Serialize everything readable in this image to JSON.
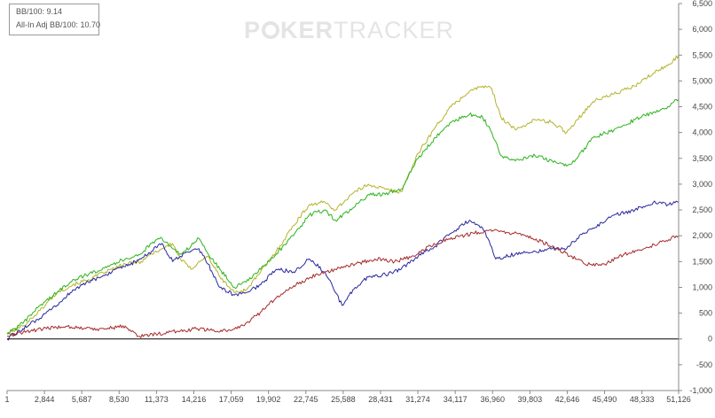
{
  "chart_data": {
    "type": "line",
    "title": "",
    "xlabel": "",
    "ylabel": "",
    "xlim": [
      1,
      51126
    ],
    "ylim": [
      -1000,
      6500
    ],
    "x_ticks": [
      1,
      2844,
      5687,
      8530,
      11373,
      14216,
      17059,
      19902,
      22745,
      25588,
      28431,
      31274,
      34117,
      36960,
      39803,
      42646,
      45490,
      48333,
      51126
    ],
    "y_ticks": [
      -1000,
      -500,
      0,
      500,
      1000,
      1500,
      2000,
      2500,
      3000,
      3500,
      4000,
      4500,
      5000,
      5500,
      6000,
      6500
    ],
    "grid": false,
    "legend": {
      "placement": "top-left",
      "entries": [
        "BB/100: 9.14",
        "All-In Adj BB/100: 10.70"
      ]
    },
    "series": [
      {
        "color": "#b5b22a",
        "x": [
          1,
          1200,
          2500,
          3800,
          5000,
          6200,
          7500,
          9000,
          10200,
          11000,
          11800,
          12600,
          13200,
          14000,
          14600,
          15300,
          16200,
          17300,
          18200,
          19300,
          20500,
          21800,
          23000,
          24200,
          25000,
          26200,
          27500,
          28800,
          30000,
          31300,
          32600,
          33800,
          35200,
          36200,
          36900,
          37600,
          38700,
          40200,
          41500,
          42600,
          43400,
          44600,
          46200,
          47800,
          49200,
          50300,
          51126
        ],
        "y": [
          100,
          250,
          550,
          900,
          1050,
          1150,
          1300,
          1450,
          1500,
          1650,
          1750,
          1850,
          1550,
          1350,
          1500,
          1600,
          1200,
          900,
          950,
          1300,
          1700,
          2200,
          2600,
          2650,
          2500,
          2800,
          3000,
          2900,
          2850,
          3600,
          4100,
          4500,
          4800,
          4900,
          4850,
          4300,
          4050,
          4250,
          4200,
          4000,
          4250,
          4600,
          4750,
          4900,
          5150,
          5300,
          5500
        ]
      },
      {
        "color": "#2db31d",
        "x": [
          1,
          1200,
          2500,
          3800,
          5000,
          6200,
          7500,
          9000,
          10200,
          11000,
          11800,
          12600,
          13200,
          14000,
          14600,
          15300,
          16200,
          17300,
          18200,
          19300,
          20500,
          21800,
          23000,
          24200,
          25000,
          26200,
          27500,
          28800,
          30000,
          31300,
          32600,
          33800,
          35200,
          36200,
          36900,
          37600,
          38700,
          40200,
          41500,
          42600,
          43400,
          44600,
          46200,
          47800,
          49200,
          50300,
          51126
        ],
        "y": [
          100,
          300,
          650,
          900,
          1150,
          1250,
          1400,
          1550,
          1650,
          1850,
          1950,
          1750,
          1650,
          1800,
          1950,
          1650,
          1350,
          1000,
          1100,
          1350,
          1650,
          2000,
          2400,
          2500,
          2300,
          2500,
          2800,
          2800,
          2900,
          3500,
          3900,
          4200,
          4350,
          4300,
          4000,
          3550,
          3450,
          3550,
          3450,
          3350,
          3500,
          3900,
          4050,
          4250,
          4400,
          4500,
          4650
        ]
      },
      {
        "color": "#27279e",
        "x": [
          1,
          1200,
          2500,
          3800,
          5000,
          6200,
          7500,
          9000,
          10200,
          11000,
          11800,
          12600,
          13200,
          14000,
          14600,
          15300,
          16200,
          17300,
          18200,
          19300,
          20500,
          21800,
          23000,
          24200,
          25000,
          25500,
          26500,
          27500,
          28800,
          30000,
          31300,
          32600,
          33800,
          35200,
          36200,
          36700,
          37200,
          38700,
          40200,
          41500,
          42600,
          43400,
          44600,
          46200,
          47800,
          49200,
          50300,
          51126
        ],
        "y": [
          0,
          200,
          400,
          650,
          950,
          1100,
          1250,
          1400,
          1550,
          1700,
          1850,
          1500,
          1600,
          1700,
          1750,
          1450,
          1000,
          850,
          900,
          1050,
          1350,
          1300,
          1550,
          1300,
          900,
          650,
          1000,
          1200,
          1250,
          1350,
          1600,
          1800,
          2050,
          2300,
          2150,
          1900,
          1550,
          1650,
          1700,
          1750,
          1750,
          1950,
          2150,
          2400,
          2500,
          2650,
          2600,
          2650
        ]
      },
      {
        "color": "#a62a2a",
        "x": [
          1,
          1500,
          3000,
          4500,
          6000,
          7500,
          9000,
          10000,
          11500,
          13000,
          14500,
          16000,
          17500,
          19000,
          20500,
          22000,
          23500,
          25000,
          26500,
          28000,
          29500,
          31000,
          32500,
          34000,
          35500,
          37000,
          38500,
          40000,
          41500,
          43000,
          44000,
          45500,
          47000,
          48500,
          50000,
          51126
        ],
        "y": [
          50,
          150,
          200,
          250,
          200,
          200,
          250,
          50,
          100,
          150,
          200,
          150,
          200,
          450,
          800,
          1050,
          1250,
          1350,
          1450,
          1550,
          1500,
          1600,
          1850,
          1950,
          2050,
          2100,
          2050,
          1950,
          1800,
          1600,
          1450,
          1450,
          1650,
          1750,
          1900,
          2000
        ]
      }
    ]
  }
}
